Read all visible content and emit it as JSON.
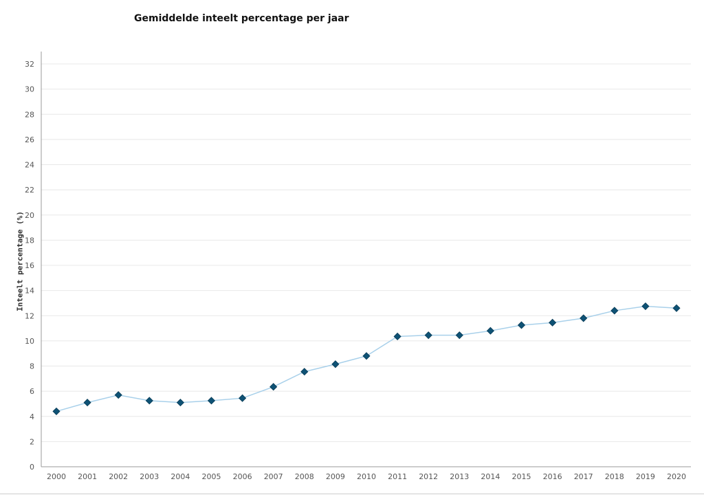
{
  "chart_data": {
    "type": "line",
    "title": "Gemiddelde inteelt percentage per jaar",
    "xlabel": "",
    "ylabel": "Inteelt percentage (%)",
    "ylim": [
      0,
      32
    ],
    "yticks": [
      0,
      2,
      4,
      6,
      8,
      10,
      12,
      14,
      16,
      18,
      20,
      22,
      24,
      26,
      28,
      30,
      32
    ],
    "grid": true,
    "categories": [
      "2000",
      "2001",
      "2002",
      "2003",
      "2004",
      "2005",
      "2006",
      "2007",
      "2008",
      "2009",
      "2010",
      "2011",
      "2012",
      "2013",
      "2014",
      "2015",
      "2016",
      "2017",
      "2018",
      "2019",
      "2020"
    ],
    "values": [
      4.4,
      5.1,
      5.7,
      5.25,
      5.1,
      5.25,
      5.45,
      6.35,
      7.55,
      8.15,
      8.8,
      10.35,
      10.45,
      10.45,
      10.8,
      11.25,
      11.45,
      11.8,
      12.4,
      12.75,
      12.6
    ],
    "colors": {
      "line": "#a8d0ea",
      "marker": "#0e5275",
      "grid": "#e8e8e8",
      "axis": "#999999"
    }
  }
}
